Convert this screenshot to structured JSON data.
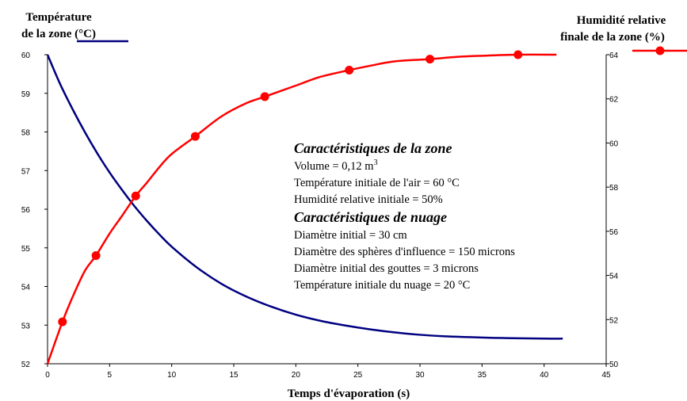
{
  "chart_data": {
    "type": "line",
    "xlabel": "Temps d'évaporation (s)",
    "xlim": [
      0,
      45
    ],
    "x_ticks": [
      "0",
      "5",
      "10",
      "15",
      "20",
      "25",
      "30",
      "35",
      "40",
      "45"
    ],
    "ylabel_left": [
      "Température",
      "de la zone (°C)"
    ],
    "ylim_left": [
      52,
      60
    ],
    "y_ticks_left": [
      "52",
      "53",
      "54",
      "55",
      "56",
      "57",
      "58",
      "59",
      "60"
    ],
    "ylabel_right": [
      "Humidité relative",
      "finale de la zone (%)"
    ],
    "ylim_right": [
      50,
      64
    ],
    "y_ticks_right": [
      "50",
      "52",
      "54",
      "56",
      "58",
      "60",
      "62",
      "64"
    ],
    "grid": false,
    "series": [
      {
        "axis": "left",
        "color": "#000080",
        "marker": "none",
        "x": [
          0,
          1,
          2,
          3,
          4,
          5,
          6,
          7,
          8,
          9,
          10,
          12,
          14,
          16,
          18,
          20,
          22,
          24,
          26,
          28,
          30,
          32,
          34,
          36,
          38,
          40,
          41.5
        ],
        "values": [
          60,
          59.25,
          58.6,
          58.0,
          57.45,
          56.95,
          56.5,
          56.08,
          55.7,
          55.35,
          55.03,
          54.5,
          54.07,
          53.74,
          53.48,
          53.27,
          53.11,
          52.99,
          52.89,
          52.81,
          52.75,
          52.71,
          52.69,
          52.67,
          52.66,
          52.65,
          52.65
        ]
      },
      {
        "axis": "right",
        "color": "#ff0000",
        "marker": "circle",
        "x": [
          0,
          1.2,
          2,
          3,
          3.9,
          5,
          6,
          7.1,
          8,
          9,
          10,
          11.9,
          14,
          16,
          17.5,
          20,
          22,
          24.3,
          26,
          28,
          30.8,
          33,
          35,
          37.9,
          41
        ],
        "values": [
          50.0,
          51.9,
          53.0,
          54.2,
          54.9,
          55.9,
          56.7,
          57.6,
          58.2,
          58.9,
          59.5,
          60.3,
          61.2,
          61.8,
          62.1,
          62.6,
          63.0,
          63.3,
          63.5,
          63.7,
          63.8,
          63.9,
          63.95,
          64.0,
          64.0
        ],
        "markers_at": [
          1.2,
          3.9,
          7.1,
          11.9,
          17.5,
          24.3,
          30.8,
          37.9
        ]
      }
    ],
    "annotation": {
      "heading1": "Caractéristiques de la zone",
      "volume": "Volume = 0,12 m",
      "volume_sup": "3",
      "line2": "Température initiale de l'air = 60 °C",
      "line3": "Humidité relative initiale = 50%",
      "heading2": "Caractéristiques de nuage",
      "line4": "Diamètre initial = 30 cm",
      "line5": "Diamètre des sphères d'influence = 150 microns",
      "line6": "Diamètre initial des gouttes = 3 microns",
      "line7": "Température initiale du nuage = 20 °C"
    }
  }
}
